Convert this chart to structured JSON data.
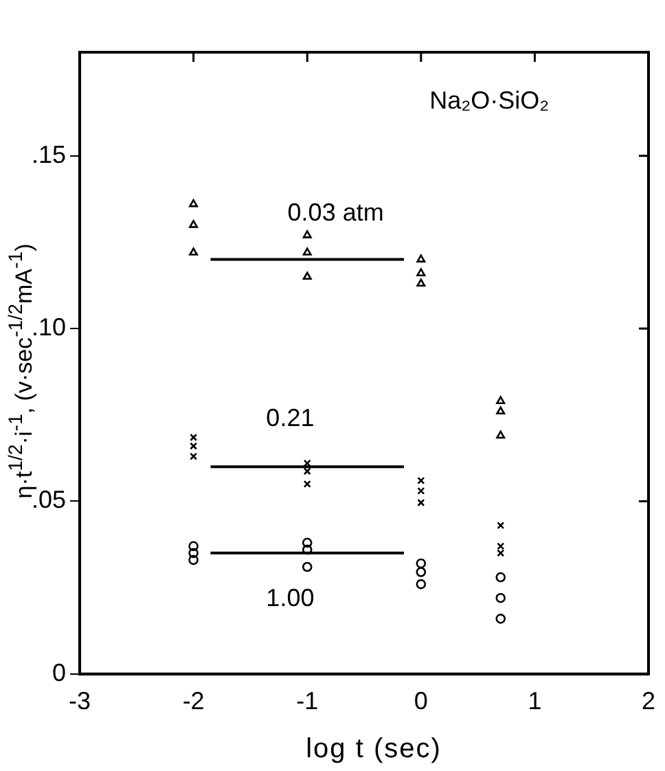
{
  "chart_data": {
    "type": "scatter",
    "xlabel": "log t (sec)",
    "ylabel": "η·t$^{1/2}$·i$^{-1}$,  (v·sec$^{-1/2}$mA$^{-1}$)",
    "xlim": [
      -3,
      2
    ],
    "xticks": [
      -3,
      -2,
      -1,
      0,
      1,
      2
    ],
    "ylim": [
      0,
      0.18
    ],
    "yticks": [
      {
        "value": 0,
        "label": "0"
      },
      {
        "value": 0.05,
        "label": ".05"
      },
      {
        "value": 0.1,
        "label": ".10"
      },
      {
        "value": 0.15,
        "label": ".15"
      }
    ],
    "grid": false,
    "legend": false,
    "series": [
      {
        "marker": "triangle",
        "color": "#000000",
        "x": [
          -2,
          -2,
          -2,
          -1,
          -1,
          -1,
          0,
          0,
          0,
          0.7,
          0.7,
          0.7
        ],
        "values": [
          0.136,
          0.13,
          0.122,
          0.127,
          0.122,
          0.115,
          0.12,
          0.116,
          0.113,
          0.079,
          0.076,
          0.069
        ]
      },
      {
        "marker": "cross",
        "color": "#000000",
        "x": [
          -2,
          -2,
          -2,
          -1,
          -1,
          -1,
          0,
          0,
          0,
          0.7,
          0.7,
          0.7
        ],
        "values": [
          0.0685,
          0.066,
          0.063,
          0.061,
          0.0587,
          0.055,
          0.056,
          0.053,
          0.0496,
          0.043,
          0.037,
          0.035
        ]
      },
      {
        "marker": "circle",
        "color": "#000000",
        "x": [
          -2,
          -2,
          -2,
          -1,
          -1,
          -1,
          0,
          0,
          0,
          0.7,
          0.7,
          0.7
        ],
        "values": [
          0.037,
          0.035,
          0.033,
          0.038,
          0.036,
          0.031,
          0.032,
          0.0295,
          0.026,
          0.028,
          0.022,
          0.016
        ]
      },
      {
        "type": "line",
        "marker": "none",
        "line_style": "solid",
        "color": "#000000",
        "x": [
          -1.85,
          -0.15
        ],
        "values": [
          0.12,
          0.12
        ]
      },
      {
        "type": "line",
        "marker": "none",
        "line_style": "solid",
        "color": "#000000",
        "x": [
          -1.85,
          -0.15
        ],
        "values": [
          0.06,
          0.06
        ]
      },
      {
        "type": "line",
        "marker": "none",
        "line_style": "solid",
        "color": "#000000",
        "x": [
          -1.85,
          -0.15
        ],
        "values": [
          0.035,
          0.035
        ]
      }
    ],
    "annotations": [
      "Na₂O·SiO₂",
      "0.03 atm",
      "0.21",
      "1.00"
    ]
  }
}
